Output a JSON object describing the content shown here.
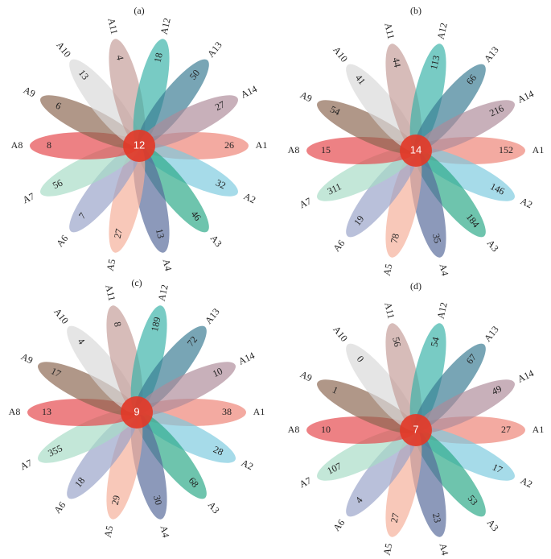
{
  "chart_data": [
    {
      "type": "flower",
      "title": "(a)",
      "categories": [
        "A1",
        "A2",
        "A3",
        "A4",
        "A5",
        "A6",
        "A7",
        "A8",
        "A9",
        "A10",
        "A11",
        "A12",
        "A13",
        "A14"
      ],
      "values": [
        26,
        32,
        46,
        13,
        27,
        7,
        56,
        8,
        6,
        13,
        4,
        18,
        50,
        27
      ],
      "center_value": 12,
      "colors": [
        "#ee8274",
        "#7ccade",
        "#2aa886",
        "#56699a",
        "#f5ae98",
        "#98a2c8",
        "#a6dcc6",
        "#e4464a",
        "#8a6650",
        "#d9d9d9",
        "#c49c98",
        "#38b2a8",
        "#387a92",
        "#ae8a9a"
      ],
      "center_color": "#e23a28"
    },
    {
      "type": "flower",
      "title": "(b)",
      "categories": [
        "A1",
        "A2",
        "A3",
        "A4",
        "A5",
        "A6",
        "A7",
        "A8",
        "A9",
        "A10",
        "A11",
        "A12",
        "A13",
        "A14"
      ],
      "values": [
        152,
        146,
        184,
        35,
        78,
        19,
        311,
        15,
        54,
        41,
        44,
        113,
        66,
        216
      ],
      "center_value": 14,
      "colors": [
        "#ee8274",
        "#7ccade",
        "#2aa886",
        "#56699a",
        "#f5ae98",
        "#98a2c8",
        "#a6dcc6",
        "#e4464a",
        "#8a6650",
        "#d9d9d9",
        "#c49c98",
        "#38b2a8",
        "#387a92",
        "#ae8a9a"
      ],
      "center_color": "#e23a28"
    },
    {
      "type": "flower",
      "title": "(c)",
      "categories": [
        "A1",
        "A2",
        "A3",
        "A4",
        "A5",
        "A6",
        "A7",
        "A8",
        "A9",
        "A10",
        "A11",
        "A12",
        "A13",
        "A14"
      ],
      "values": [
        38,
        28,
        68,
        30,
        29,
        18,
        355,
        13,
        17,
        4,
        8,
        189,
        72,
        10
      ],
      "center_value": 9,
      "colors": [
        "#ee8274",
        "#7ccade",
        "#2aa886",
        "#56699a",
        "#f5ae98",
        "#98a2c8",
        "#a6dcc6",
        "#e4464a",
        "#8a6650",
        "#d9d9d9",
        "#c49c98",
        "#38b2a8",
        "#387a92",
        "#ae8a9a"
      ],
      "center_color": "#e23a28"
    },
    {
      "type": "flower",
      "title": "(d)",
      "categories": [
        "A1",
        "A2",
        "A3",
        "A4",
        "A5",
        "A6",
        "A7",
        "A8",
        "A9",
        "A10",
        "A11",
        "A12",
        "A13",
        "A14"
      ],
      "values": [
        27,
        17,
        53,
        23,
        27,
        4,
        107,
        10,
        1,
        0,
        56,
        54,
        67,
        49
      ],
      "center_value": 7,
      "colors": [
        "#ee8274",
        "#7ccade",
        "#2aa886",
        "#56699a",
        "#f5ae98",
        "#98a2c8",
        "#a6dcc6",
        "#e4464a",
        "#8a6650",
        "#d9d9d9",
        "#c49c98",
        "#38b2a8",
        "#387a92",
        "#ae8a9a"
      ],
      "center_color": "#e23a28"
    }
  ]
}
